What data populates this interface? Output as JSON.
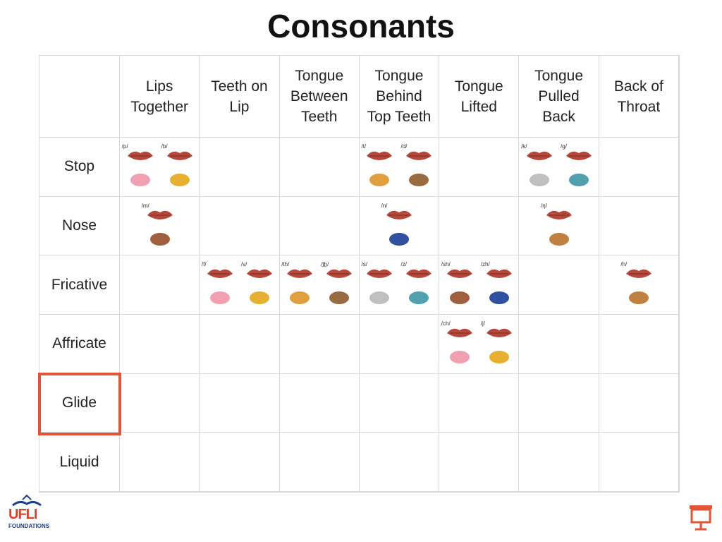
{
  "title": "Consonants",
  "table": {
    "columns": [
      "Lips Together",
      "Teeth on Lip",
      "Tongue Between Teeth",
      "Tongue Behind Top Teeth",
      "Tongue Lifted",
      "Tongue Pulled Back",
      "Back of Throat"
    ],
    "rows": [
      {
        "label": "Stop",
        "cells": [
          [
            "/p/",
            "/b/"
          ],
          [],
          [],
          [
            "/t/",
            "/d/"
          ],
          [],
          [
            "/k/",
            "/g/"
          ],
          []
        ]
      },
      {
        "label": "Nose",
        "cells": [
          [
            "/m/"
          ],
          [],
          [],
          [
            "/n/"
          ],
          [],
          [
            "/ŋ/"
          ],
          []
        ]
      },
      {
        "label": "Fricative",
        "cells": [
          [],
          [
            "/f/",
            "/v/"
          ],
          [
            "/th/",
            "/t͟h/"
          ],
          [
            "/s/",
            "/z/"
          ],
          [
            "/sh/",
            "/zh/"
          ],
          [],
          [
            "/h/"
          ]
        ]
      },
      {
        "label": "Affricate",
        "cells": [
          [],
          [],
          [],
          [],
          [
            "/ch/",
            "/j/"
          ],
          [],
          []
        ]
      },
      {
        "label": "Glide",
        "cells": [
          [],
          [],
          [],
          [],
          [],
          [],
          []
        ]
      },
      {
        "label": "Liquid",
        "cells": [
          [],
          [],
          [],
          [],
          [],
          [],
          []
        ]
      }
    ]
  },
  "logo": {
    "text": "UFLI",
    "subtext": "FOUNDATIONS"
  }
}
